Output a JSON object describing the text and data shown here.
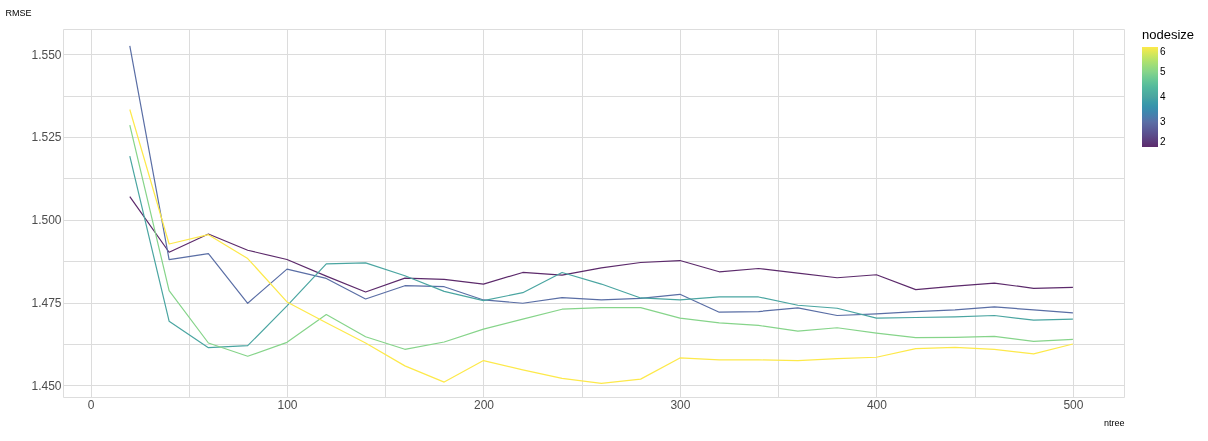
{
  "chart_data": {
    "type": "line",
    "xlabel": "ntree",
    "ylabel": "RMSE",
    "legend_title": "nodesize",
    "grid": true,
    "line_style": "solid",
    "x": [
      20,
      40,
      60,
      80,
      100,
      120,
      140,
      160,
      180,
      200,
      220,
      240,
      260,
      280,
      300,
      320,
      340,
      360,
      380,
      400,
      420,
      440,
      460,
      480,
      500
    ],
    "xlim": [
      -14,
      526
    ],
    "xticks": [
      0,
      {
        "value": 50,
        "label": null
      },
      100,
      {
        "value": 150,
        "label": null
      },
      200,
      {
        "value": 250,
        "label": null
      },
      300,
      {
        "value": 350,
        "label": null
      },
      400,
      {
        "value": 450,
        "label": null
      },
      500
    ],
    "ylim": [
      1.4465,
      1.5576
    ],
    "yticks": [
      {
        "value": 1.45,
        "label": "1.450"
      },
      {
        "value": 1.4625,
        "label": null
      },
      {
        "value": 1.475,
        "label": "1.475"
      },
      {
        "value": 1.4875,
        "label": null
      },
      {
        "value": 1.5,
        "label": "1.500"
      },
      {
        "value": 1.5125,
        "label": null
      },
      {
        "value": 1.525,
        "label": "1.525"
      },
      {
        "value": 1.5375,
        "label": null
      },
      {
        "value": 1.55,
        "label": "1.550"
      }
    ],
    "clim": [
      2,
      6
    ],
    "cticks": [
      2,
      3,
      4,
      5,
      6
    ],
    "series": [
      {
        "color": "#5c2a6b",
        "values": [
          1.507,
          1.4902,
          1.4957,
          1.4908,
          1.488,
          1.483,
          1.4782,
          1.4824,
          1.482,
          1.4806,
          1.4841,
          1.4833,
          1.4855,
          1.4871,
          1.4877,
          1.4843,
          1.4853,
          1.4839,
          1.4825,
          1.4834,
          1.4789,
          1.48,
          1.4809,
          1.4793,
          1.4796
        ]
      },
      {
        "color": "#5a6ea5",
        "values": [
          1.5525,
          1.488,
          1.4898,
          1.4748,
          1.4851,
          1.4823,
          1.4761,
          1.4801,
          1.4798,
          1.4758,
          1.4748,
          1.4765,
          1.4758,
          1.4763,
          1.4775,
          1.4721,
          1.4723,
          1.4734,
          1.4711,
          1.4716,
          1.4723,
          1.4728,
          1.4737,
          1.4728,
          1.4719
        ]
      },
      {
        "color": "#4aa5a1",
        "values": [
          1.5192,
          1.4694,
          1.4614,
          1.462,
          1.474,
          1.4867,
          1.487,
          1.4831,
          1.4784,
          1.4756,
          1.478,
          1.4841,
          1.4806,
          1.4764,
          1.4758,
          1.4767,
          1.4767,
          1.4742,
          1.4733,
          1.4703,
          1.4705,
          1.4707,
          1.4711,
          1.4697,
          1.47
        ]
      },
      {
        "color": "#86d48a",
        "values": [
          1.5286,
          1.4786,
          1.4628,
          1.4588,
          1.463,
          1.4714,
          1.4647,
          1.4609,
          1.4631,
          1.467,
          1.47,
          1.473,
          1.4735,
          1.4735,
          1.4703,
          1.4689,
          1.4681,
          1.4664,
          1.4674,
          1.4658,
          1.4644,
          1.4645,
          1.4648,
          1.4633,
          1.4639
        ]
      },
      {
        "color": "#fde94a",
        "values": [
          1.5333,
          1.4927,
          1.4955,
          1.4883,
          1.4752,
          1.4689,
          1.4628,
          1.4559,
          1.451,
          1.4575,
          1.4547,
          1.4521,
          1.4506,
          1.4519,
          1.4583,
          1.4577,
          1.4577,
          1.4575,
          1.4581,
          1.4585,
          1.4611,
          1.4615,
          1.4609,
          1.4595,
          1.4625
        ]
      }
    ]
  }
}
